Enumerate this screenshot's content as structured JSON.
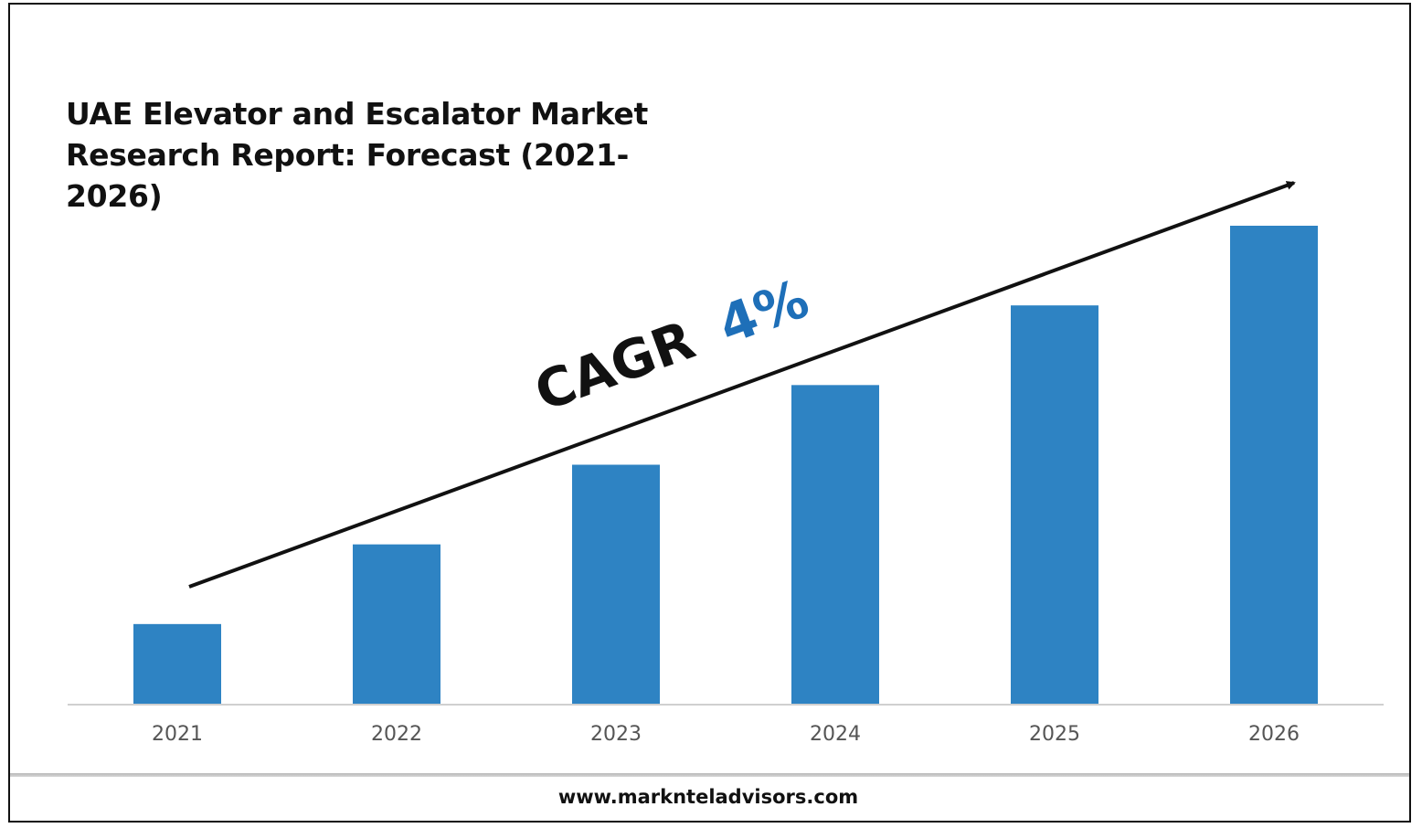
{
  "chart_data": {
    "type": "bar",
    "title": "UAE Elevator and Escalator Market Research Report: Forecast (2021-2026)",
    "categories": [
      "2021",
      "2022",
      "2023",
      "2024",
      "2025",
      "2026"
    ],
    "values": [
      1,
      2,
      3,
      4,
      5,
      6
    ],
    "ylim": [
      0,
      6
    ],
    "grid": false,
    "legend": "none",
    "bar_color": "#2E83C3",
    "annotation": {
      "cagr_label": "CAGR",
      "cagr_value": "4%",
      "cagr_value_color": "#1E6FB8"
    }
  },
  "footer": {
    "website": "www.marknteladvisors.com"
  }
}
